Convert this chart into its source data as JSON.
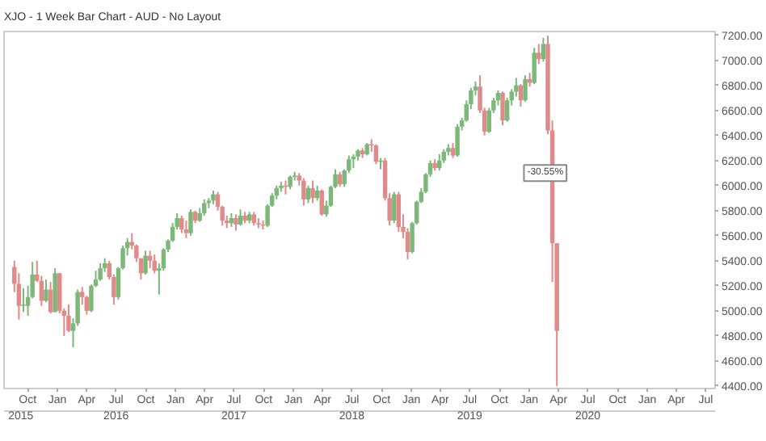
{
  "chart_data": {
    "type": "candlestick",
    "title": "XJO - 1 Week Bar Chart - AUD - No Layout",
    "x": [
      "2015-08-21",
      "2015-09-04",
      "2015-09-18",
      "2015-10-02",
      "2015-10-16",
      "2015-10-30",
      "2015-11-13",
      "2015-11-27",
      "2015-12-11",
      "2015-12-25",
      "2016-01-08",
      "2016-01-22",
      "2016-02-05",
      "2016-02-19",
      "2016-03-04",
      "2016-03-18",
      "2016-04-01",
      "2016-04-15",
      "2016-04-29",
      "2016-05-13",
      "2016-05-27",
      "2016-06-10",
      "2016-06-24",
      "2016-07-08",
      "2016-07-22",
      "2016-08-05",
      "2016-08-19",
      "2016-09-02",
      "2016-09-16",
      "2016-09-30",
      "2016-10-14",
      "2016-10-28",
      "2016-11-11",
      "2016-11-25",
      "2016-12-09",
      "2016-12-23",
      "2017-01-06",
      "2017-01-20",
      "2017-02-03",
      "2017-02-17",
      "2017-03-03",
      "2017-03-17",
      "2017-03-31",
      "2017-04-14",
      "2017-04-28",
      "2017-05-12",
      "2017-05-26",
      "2017-06-09",
      "2017-06-23",
      "2017-07-07",
      "2017-07-21",
      "2017-08-04",
      "2017-08-18",
      "2017-09-01",
      "2017-09-15",
      "2017-09-29",
      "2017-10-13",
      "2017-10-27",
      "2017-11-10",
      "2017-11-24",
      "2017-12-08",
      "2017-12-22",
      "2018-01-05",
      "2018-01-19",
      "2018-02-02",
      "2018-02-16",
      "2018-03-02",
      "2018-03-16",
      "2018-03-30",
      "2018-04-13",
      "2018-04-27",
      "2018-05-11",
      "2018-05-25",
      "2018-06-08",
      "2018-06-22",
      "2018-07-06",
      "2018-07-20",
      "2018-08-03",
      "2018-08-17",
      "2018-08-31",
      "2018-09-14",
      "2018-09-28",
      "2018-10-12",
      "2018-10-26",
      "2018-11-09",
      "2018-11-23",
      "2018-12-07",
      "2018-12-21",
      "2019-01-04",
      "2019-01-18",
      "2019-02-01",
      "2019-02-15",
      "2019-03-01",
      "2019-03-15",
      "2019-03-29",
      "2019-04-12",
      "2019-04-26",
      "2019-05-10",
      "2019-05-24",
      "2019-06-07",
      "2019-06-21",
      "2019-07-05",
      "2019-07-19",
      "2019-08-02",
      "2019-08-16",
      "2019-08-30",
      "2019-09-13",
      "2019-09-27",
      "2019-10-11",
      "2019-10-25",
      "2019-11-08",
      "2019-11-22",
      "2019-12-06",
      "2019-12-20",
      "2020-01-03",
      "2020-01-17",
      "2020-01-31",
      "2020-02-14",
      "2020-02-28",
      "2020-03-13",
      "2020-03-27"
    ],
    "ohlc": [
      [
        5350,
        5400,
        5150,
        5215
      ],
      [
        5215,
        5300,
        4930,
        5040
      ],
      [
        5040,
        5180,
        4990,
        5050
      ],
      [
        5040,
        5200,
        4960,
        5110
      ],
      [
        5110,
        5390,
        5100,
        5290
      ],
      [
        5290,
        5400,
        5230,
        5240
      ],
      [
        5240,
        5280,
        5040,
        5080
      ],
      [
        5080,
        5250,
        5070,
        5170
      ],
      [
        5170,
        5230,
        4980,
        4990
      ],
      [
        4990,
        5340,
        4990,
        5300
      ],
      [
        5300,
        5300,
        4980,
        5000
      ],
      [
        5000,
        5020,
        4800,
        4960
      ],
      [
        4960,
        5050,
        4830,
        4840
      ],
      [
        4840,
        4940,
        4710,
        4900
      ],
      [
        4900,
        5170,
        4880,
        5150
      ],
      [
        5150,
        5190,
        5050,
        5110
      ],
      [
        5110,
        5120,
        4970,
        5000
      ],
      [
        5000,
        5210,
        4990,
        5200
      ],
      [
        5200,
        5320,
        5190,
        5250
      ],
      [
        5250,
        5380,
        5240,
        5340
      ],
      [
        5340,
        5420,
        5310,
        5380
      ],
      [
        5380,
        5400,
        5250,
        5270
      ],
      [
        5270,
        5290,
        5050,
        5110
      ],
      [
        5110,
        5350,
        5090,
        5340
      ],
      [
        5340,
        5520,
        5330,
        5500
      ],
      [
        5500,
        5580,
        5440,
        5550
      ],
      [
        5550,
        5620,
        5490,
        5520
      ],
      [
        5520,
        5530,
        5390,
        5420
      ],
      [
        5420,
        5420,
        5250,
        5300
      ],
      [
        5300,
        5480,
        5290,
        5440
      ],
      [
        5440,
        5480,
        5340,
        5400
      ],
      [
        5400,
        5450,
        5300,
        5320
      ],
      [
        5320,
        5380,
        5130,
        5340
      ],
      [
        5340,
        5500,
        5320,
        5490
      ],
      [
        5490,
        5570,
        5470,
        5560
      ],
      [
        5560,
        5700,
        5550,
        5670
      ],
      [
        5670,
        5780,
        5650,
        5740
      ],
      [
        5740,
        5760,
        5620,
        5650
      ],
      [
        5650,
        5720,
        5580,
        5620
      ],
      [
        5620,
        5810,
        5600,
        5790
      ],
      [
        5790,
        5800,
        5700,
        5720
      ],
      [
        5720,
        5820,
        5710,
        5780
      ],
      [
        5780,
        5890,
        5760,
        5860
      ],
      [
        5860,
        5900,
        5820,
        5880
      ],
      [
        5880,
        5960,
        5850,
        5930
      ],
      [
        5930,
        5950,
        5800,
        5830
      ],
      [
        5830,
        5840,
        5680,
        5720
      ],
      [
        5720,
        5760,
        5660,
        5700
      ],
      [
        5700,
        5780,
        5670,
        5740
      ],
      [
        5740,
        5770,
        5640,
        5690
      ],
      [
        5690,
        5810,
        5680,
        5760
      ],
      [
        5760,
        5790,
        5700,
        5720
      ],
      [
        5720,
        5790,
        5700,
        5770
      ],
      [
        5770,
        5790,
        5680,
        5700
      ],
      [
        5700,
        5740,
        5660,
        5690
      ],
      [
        5690,
        5720,
        5650,
        5680
      ],
      [
        5680,
        5850,
        5670,
        5840
      ],
      [
        5840,
        5940,
        5830,
        5920
      ],
      [
        5920,
        6000,
        5890,
        5980
      ],
      [
        5980,
        6030,
        5950,
        6000
      ],
      [
        6000,
        6040,
        5930,
        5990
      ],
      [
        5990,
        6080,
        5970,
        6070
      ],
      [
        6070,
        6110,
        6040,
        6080
      ],
      [
        6080,
        6100,
        6000,
        6040
      ],
      [
        6040,
        6060,
        5840,
        5890
      ],
      [
        5890,
        6000,
        5860,
        5980
      ],
      [
        5980,
        6040,
        5860,
        5900
      ],
      [
        5900,
        6000,
        5880,
        5960
      ],
      [
        5960,
        5970,
        5760,
        5770
      ],
      [
        5770,
        5880,
        5750,
        5840
      ],
      [
        5840,
        6000,
        5830,
        5990
      ],
      [
        5990,
        6130,
        5980,
        6090
      ],
      [
        6090,
        6110,
        5990,
        6010
      ],
      [
        6010,
        6130,
        5990,
        6120
      ],
      [
        6120,
        6240,
        6100,
        6210
      ],
      [
        6210,
        6250,
        6140,
        6230
      ],
      [
        6230,
        6290,
        6200,
        6280
      ],
      [
        6280,
        6300,
        6220,
        6250
      ],
      [
        6250,
        6340,
        6240,
        6330
      ],
      [
        6330,
        6370,
        6270,
        6320
      ],
      [
        6320,
        6330,
        6170,
        6190
      ],
      [
        6190,
        6220,
        6130,
        6200
      ],
      [
        6200,
        6220,
        5880,
        5900
      ],
      [
        5900,
        5940,
        5680,
        5720
      ],
      [
        5720,
        5950,
        5700,
        5930
      ],
      [
        5930,
        5950,
        5630,
        5670
      ],
      [
        5670,
        5770,
        5580,
        5630
      ],
      [
        5630,
        5660,
        5410,
        5470
      ],
      [
        5470,
        5710,
        5460,
        5700
      ],
      [
        5700,
        5880,
        5690,
        5870
      ],
      [
        5870,
        5980,
        5860,
        5950
      ],
      [
        5950,
        6100,
        5940,
        6090
      ],
      [
        6090,
        6200,
        6070,
        6180
      ],
      [
        6180,
        6210,
        6120,
        6140
      ],
      [
        6140,
        6250,
        6120,
        6200
      ],
      [
        6200,
        6290,
        6180,
        6270
      ],
      [
        6270,
        6330,
        6240,
        6300
      ],
      [
        6300,
        6340,
        6220,
        6240
      ],
      [
        6240,
        6490,
        6230,
        6470
      ],
      [
        6470,
        6540,
        6440,
        6520
      ],
      [
        6520,
        6680,
        6510,
        6650
      ],
      [
        6650,
        6780,
        6610,
        6760
      ],
      [
        6760,
        6830,
        6720,
        6790
      ],
      [
        6790,
        6880,
        6580,
        6600
      ],
      [
        6600,
        6620,
        6400,
        6430
      ],
      [
        6430,
        6620,
        6420,
        6600
      ],
      [
        6600,
        6700,
        6580,
        6680
      ],
      [
        6680,
        6760,
        6640,
        6740
      ],
      [
        6740,
        6750,
        6480,
        6520
      ],
      [
        6520,
        6700,
        6510,
        6680
      ],
      [
        6680,
        6770,
        6640,
        6750
      ],
      [
        6750,
        6860,
        6710,
        6800
      ],
      [
        6800,
        6810,
        6630,
        6680
      ],
      [
        6680,
        6880,
        6670,
        6850
      ],
      [
        6850,
        6900,
        6790,
        6820
      ],
      [
        6820,
        7100,
        6810,
        7060
      ],
      [
        7060,
        7130,
        6970,
        7010
      ],
      [
        7010,
        7180,
        6990,
        7130
      ],
      [
        7130,
        7197,
        6410,
        6440
      ],
      [
        6440,
        6520,
        5230,
        5540
      ],
      [
        5540,
        5540,
        4400,
        4840
      ]
    ],
    "colors": [
      "#e08a8a",
      "#e08a8a",
      "#7cb87a",
      "#7cb87a",
      "#7cb87a",
      "#e08a8a",
      "#e08a8a",
      "#7cb87a",
      "#e08a8a",
      "#7cb87a",
      "#e08a8a",
      "#e08a8a",
      "#e08a8a",
      "#7cb87a",
      "#7cb87a",
      "#e08a8a",
      "#e08a8a",
      "#7cb87a",
      "#7cb87a",
      "#7cb87a",
      "#7cb87a",
      "#e08a8a",
      "#e08a8a",
      "#7cb87a",
      "#7cb87a",
      "#7cb87a",
      "#e08a8a",
      "#e08a8a",
      "#e08a8a",
      "#7cb87a",
      "#e08a8a",
      "#e08a8a",
      "#7cb87a",
      "#7cb87a",
      "#7cb87a",
      "#7cb87a",
      "#7cb87a",
      "#e08a8a",
      "#e08a8a",
      "#7cb87a",
      "#e08a8a",
      "#7cb87a",
      "#7cb87a",
      "#7cb87a",
      "#7cb87a",
      "#e08a8a",
      "#e08a8a",
      "#e08a8a",
      "#7cb87a",
      "#e08a8a",
      "#7cb87a",
      "#e08a8a",
      "#7cb87a",
      "#e08a8a",
      "#e08a8a",
      "#e08a8a",
      "#7cb87a",
      "#7cb87a",
      "#7cb87a",
      "#7cb87a",
      "#e08a8a",
      "#7cb87a",
      "#7cb87a",
      "#e08a8a",
      "#e08a8a",
      "#7cb87a",
      "#e08a8a",
      "#7cb87a",
      "#e08a8a",
      "#7cb87a",
      "#7cb87a",
      "#7cb87a",
      "#e08a8a",
      "#7cb87a",
      "#7cb87a",
      "#7cb87a",
      "#7cb87a",
      "#e08a8a",
      "#7cb87a",
      "#e08a8a",
      "#e08a8a",
      "#7cb87a",
      "#e08a8a",
      "#e08a8a",
      "#7cb87a",
      "#e08a8a",
      "#e08a8a",
      "#e08a8a",
      "#7cb87a",
      "#7cb87a",
      "#7cb87a",
      "#7cb87a",
      "#7cb87a",
      "#e08a8a",
      "#7cb87a",
      "#7cb87a",
      "#7cb87a",
      "#e08a8a",
      "#7cb87a",
      "#7cb87a",
      "#7cb87a",
      "#7cb87a",
      "#7cb87a",
      "#e08a8a",
      "#e08a8a",
      "#7cb87a",
      "#7cb87a",
      "#7cb87a",
      "#e08a8a",
      "#7cb87a",
      "#7cb87a",
      "#7cb87a",
      "#e08a8a",
      "#7cb87a",
      "#e08a8a",
      "#7cb87a",
      "#e08a8a",
      "#7cb87a",
      "#e08a8a",
      "#e08a8a",
      "#e08a8a"
    ],
    "xlim": [
      "2015-07-20",
      "2021-07-30"
    ],
    "xticks": [
      {
        "value": "2015-10-01",
        "label": "Oct"
      },
      {
        "value": "2016-01-01",
        "label": "Jan"
      },
      {
        "value": "2016-04-01",
        "label": "Apr"
      },
      {
        "value": "2016-07-01",
        "label": "Jul"
      },
      {
        "value": "2016-10-01",
        "label": "Oct"
      },
      {
        "value": "2017-01-01",
        "label": "Jan"
      },
      {
        "value": "2017-04-01",
        "label": "Apr"
      },
      {
        "value": "2017-07-01",
        "label": "Jul"
      },
      {
        "value": "2017-10-01",
        "label": "Oct"
      },
      {
        "value": "2018-01-01",
        "label": "Jan"
      },
      {
        "value": "2018-04-01",
        "label": "Apr"
      },
      {
        "value": "2018-07-01",
        "label": "Jul"
      },
      {
        "value": "2018-10-01",
        "label": "Oct"
      },
      {
        "value": "2019-01-01",
        "label": "Jan"
      },
      {
        "value": "2019-04-01",
        "label": "Apr"
      },
      {
        "value": "2019-07-01",
        "label": "Jul"
      },
      {
        "value": "2019-10-01",
        "label": "Oct"
      },
      {
        "value": "2020-01-01",
        "label": "Jan"
      },
      {
        "value": "2020-04-01",
        "label": "Apr"
      },
      {
        "value": "2020-07-01",
        "label": "Jul"
      },
      {
        "value": "2020-10-01",
        "label": "Oct"
      },
      {
        "value": "2021-01-01",
        "label": "Jan"
      },
      {
        "value": "2021-04-01",
        "label": "Apr"
      },
      {
        "value": "2021-07-01",
        "label": "Jul"
      }
    ],
    "x2lim": [
      "2015-07-20",
      "2021-07-30"
    ],
    "x2ticks": [
      {
        "value": "2015-09-10",
        "label": "2015"
      },
      {
        "value": "2016-07-01",
        "label": "2016"
      },
      {
        "value": "2017-07-01",
        "label": "2017"
      },
      {
        "value": "2018-07-01",
        "label": "2018"
      },
      {
        "value": "2019-07-01",
        "label": "2019"
      },
      {
        "value": "2020-07-01",
        "label": "2020"
      }
    ],
    "ylim": [
      4380,
      7230
    ],
    "yticks": [
      {
        "value": 4400,
        "label": "4400.00"
      },
      {
        "value": 4600,
        "label": "4600.00"
      },
      {
        "value": 4800,
        "label": "4800.00"
      },
      {
        "value": 5000,
        "label": "5000.00"
      },
      {
        "value": 5200,
        "label": "5200.00"
      },
      {
        "value": 5400,
        "label": "5400.00"
      },
      {
        "value": 5600,
        "label": "5600.00"
      },
      {
        "value": 5800,
        "label": "5800.00"
      },
      {
        "value": 6000,
        "label": "6000.00"
      },
      {
        "value": 6200,
        "label": "6200.00"
      },
      {
        "value": 6400,
        "label": "6400.00"
      },
      {
        "value": 6600,
        "label": "6600.00"
      },
      {
        "value": 6800,
        "label": "6800.00"
      },
      {
        "value": 7000,
        "label": "7000.00"
      },
      {
        "value": 7200,
        "label": "7200.00"
      }
    ],
    "annotations": [
      {
        "text": "-30.55%",
        "x": "2020-02-20",
        "y": 6100
      }
    ]
  }
}
